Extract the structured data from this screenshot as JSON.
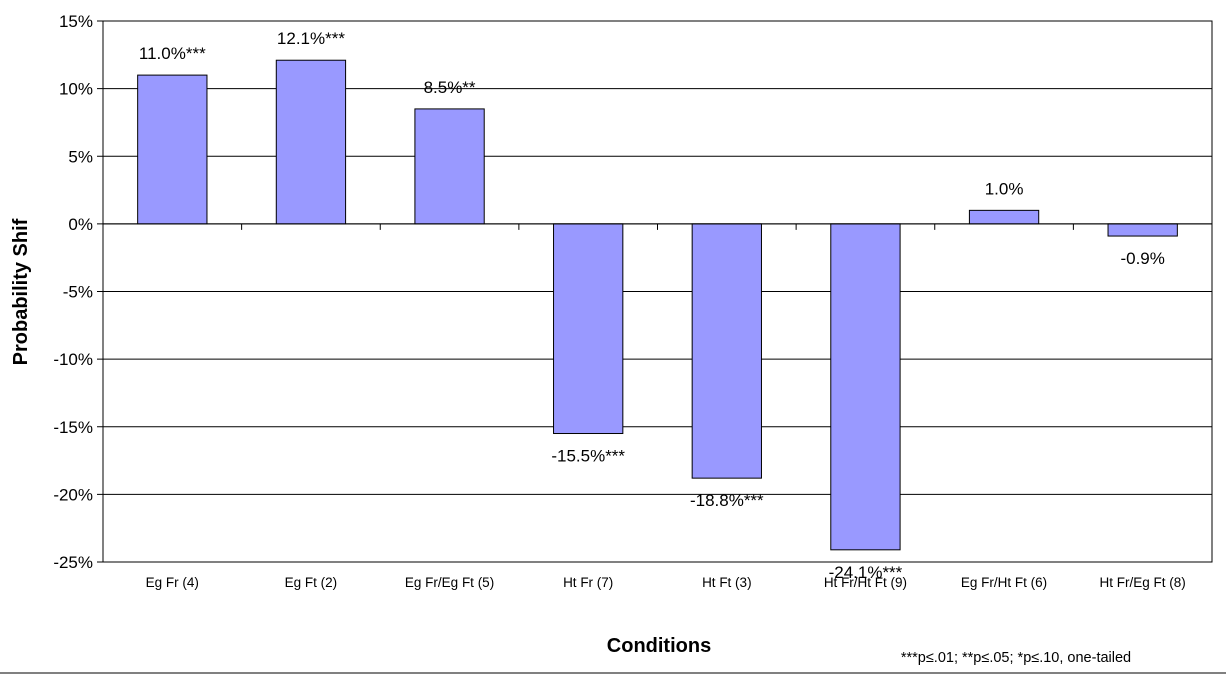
{
  "chart_data": {
    "type": "bar",
    "title": "",
    "xlabel": "Conditions",
    "ylabel": "Probability Shif",
    "ylim": [
      -25,
      15
    ],
    "y_ticks": [
      15,
      10,
      5,
      0,
      -5,
      -10,
      -15,
      -20,
      -25
    ],
    "y_tick_labels": [
      "15%",
      "10%",
      "5%",
      "0%",
      "-5%",
      "-10%",
      "-15%",
      "-20%",
      "-25%"
    ],
    "grid": true,
    "categories": [
      "Eg Fr (4)",
      "Eg Ft (2)",
      "Eg Fr/Eg Ft (5)",
      "Ht Fr (7)",
      "Ht Ft (3)",
      "Ht Fr/Ht Ft (9)",
      "Eg Fr/Ht Ft (6)",
      "Ht Fr/Eg Ft (8)"
    ],
    "values": [
      11.0,
      12.1,
      8.5,
      -15.5,
      -18.8,
      -24.1,
      1.0,
      -0.9
    ],
    "data_labels": [
      "11.0%***",
      "12.1%***",
      "8.5%**",
      "-15.5%***",
      "-18.8%***",
      "-24.1%***",
      "1.0%",
      "-0.9%"
    ],
    "bar_color": "#9999ff",
    "footnote": "***p≤.01; **p≤.05; *p≤.10, one-tailed"
  }
}
